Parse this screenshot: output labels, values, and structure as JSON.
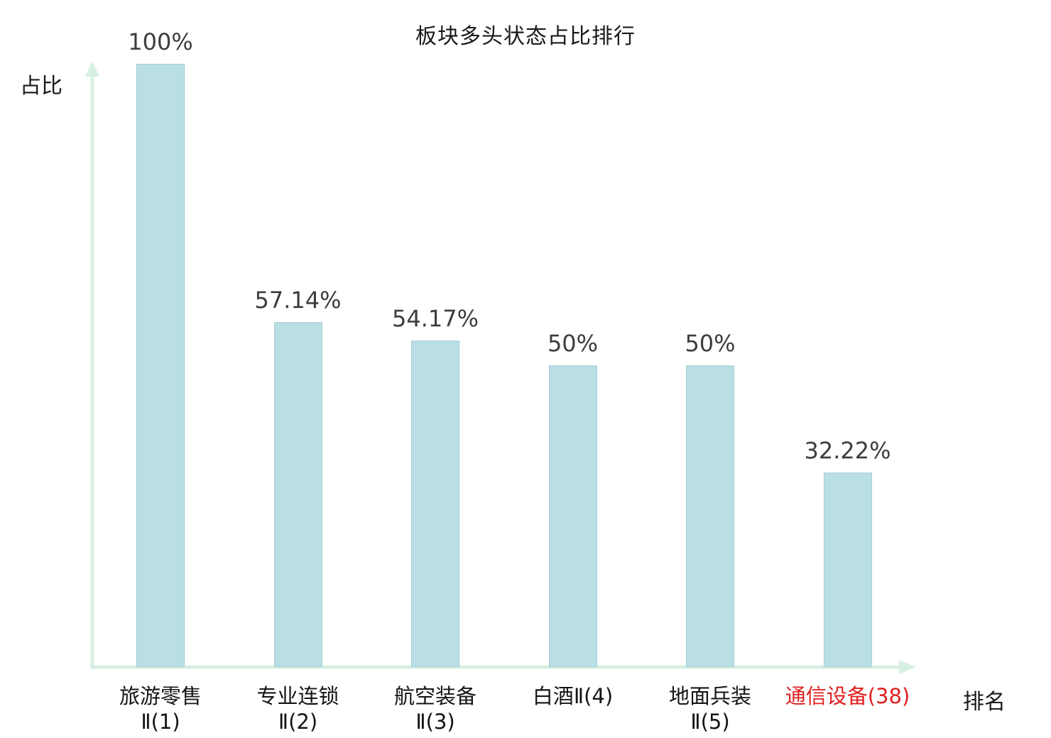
{
  "chart_data": {
    "type": "bar",
    "title": "板块多头状态占比排行",
    "ylabel": "占比",
    "xlabel": "排名",
    "categories": [
      {
        "line1": "旅游零售",
        "line2": "Ⅱ(1)",
        "highlight": false
      },
      {
        "line1": "专业连锁",
        "line2": "Ⅱ(2)",
        "highlight": false
      },
      {
        "line1": "航空装备",
        "line2": "Ⅱ(3)",
        "highlight": false
      },
      {
        "line1": "白酒Ⅱ(4)",
        "line2": "",
        "highlight": false
      },
      {
        "line1": "地面兵装",
        "line2": "Ⅱ(5)",
        "highlight": false
      },
      {
        "line1": "通信设备(38)",
        "line2": "",
        "highlight": true
      }
    ],
    "values": [
      100,
      57.14,
      54.17,
      50,
      50,
      32.22
    ],
    "value_labels": [
      "100%",
      "57.14%",
      "54.17%",
      "50%",
      "50%",
      "32.22%"
    ],
    "ylim": [
      0,
      100
    ],
    "grid": false,
    "legend": false,
    "bar_color": "#b9dfe4",
    "bar_border_color": "#a3ced6",
    "axis_color": "#d7efe2",
    "highlight_color": "#e01f1f",
    "label_color": "#141414",
    "value_label_color": "#3d3d3d"
  }
}
